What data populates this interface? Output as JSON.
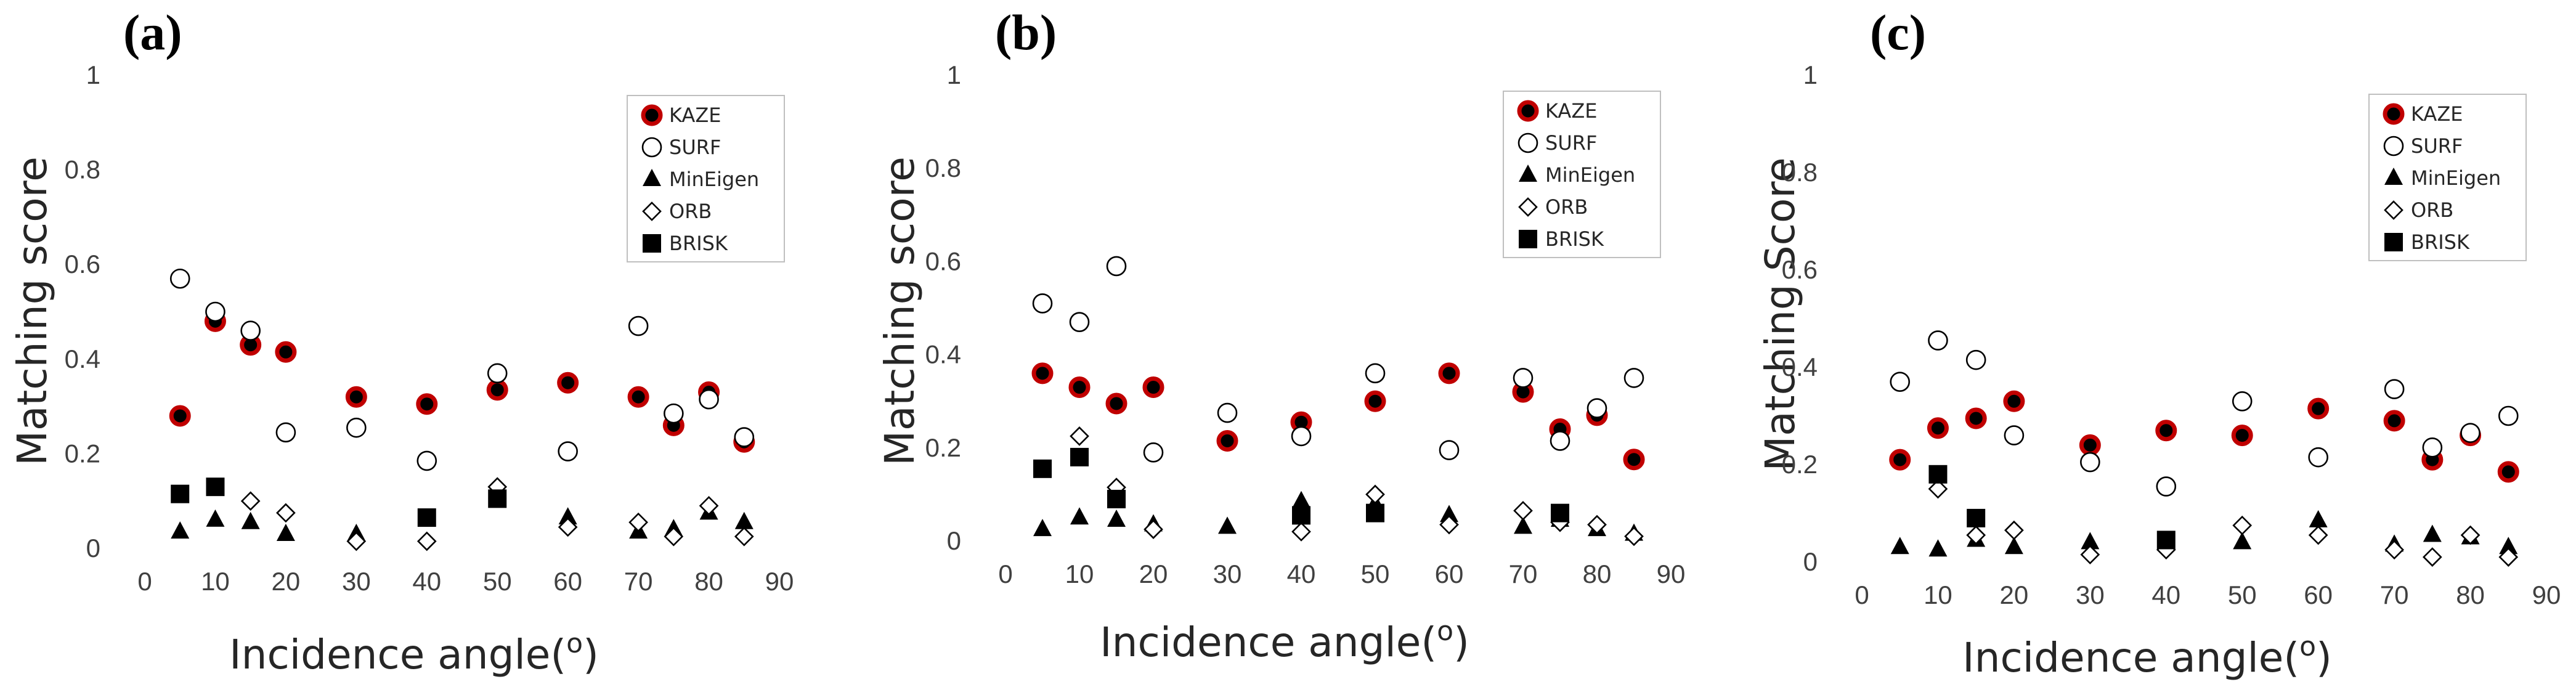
{
  "figure": {
    "marker_colors": {
      "kaze_fill": "#000000",
      "kaze_edge": "#c00000",
      "surf_edge": "#000000",
      "solid": "#000000"
    },
    "legend_order": [
      "KAZE",
      "SURF",
      "MinEigen",
      "ORB",
      "BRISK"
    ]
  },
  "chart_data": [
    {
      "type": "scatter",
      "panel_label": "(a)",
      "title": "",
      "xlabel": "Incidence angle(o)",
      "xlabel_main": "Incidence angle(",
      "xlabel_sup": "o",
      "xlabel_close": ")",
      "ylabel": "Matching score",
      "xlim": [
        0,
        90
      ],
      "ylim": [
        0,
        1
      ],
      "xticks": [
        "0",
        "10",
        "20",
        "30",
        "40",
        "50",
        "60",
        "70",
        "80",
        "90"
      ],
      "yticks": [
        "0",
        "0.2",
        "0.4",
        "0.6",
        "0.8",
        "1"
      ],
      "grid": false,
      "legend_position": "top-right",
      "x": [
        5,
        10,
        15,
        20,
        30,
        40,
        50,
        60,
        70,
        75,
        80,
        85
      ],
      "series": [
        {
          "name": "KAZE",
          "values": [
            0.28,
            0.48,
            0.43,
            0.415,
            0.32,
            0.305,
            0.335,
            0.35,
            0.32,
            0.26,
            0.33,
            0.225
          ]
        },
        {
          "name": "SURF",
          "values": [
            0.57,
            0.5,
            0.46,
            0.245,
            0.255,
            0.185,
            0.37,
            0.205,
            0.47,
            0.285,
            0.315,
            0.235
          ]
        },
        {
          "name": "MinEigen",
          "values": [
            0.035,
            0.06,
            0.055,
            0.03,
            0.03,
            null,
            0.12,
            0.065,
            0.035,
            0.04,
            0.075,
            0.055
          ]
        },
        {
          "name": "ORB",
          "values": [
            null,
            null,
            0.1,
            0.075,
            0.015,
            0.015,
            0.13,
            0.045,
            0.055,
            0.025,
            0.09,
            0.025
          ]
        },
        {
          "name": "BRISK",
          "values": [
            0.115,
            0.13,
            null,
            null,
            null,
            0.065,
            0.105,
            null,
            null,
            null,
            null,
            null
          ]
        }
      ]
    },
    {
      "type": "scatter",
      "panel_label": "(b)",
      "title": "",
      "xlabel": "Incidence angle(o)",
      "xlabel_main": "Incidence angle(",
      "xlabel_sup": "o",
      "xlabel_close": ")",
      "ylabel": "Matching score",
      "xlim": [
        0,
        90
      ],
      "ylim": [
        0,
        1
      ],
      "xticks": [
        "0",
        "10",
        "20",
        "30",
        "40",
        "50",
        "60",
        "70",
        "80",
        "90"
      ],
      "yticks": [
        "0",
        "0.2",
        "0.4",
        "0.6",
        "0.8",
        "1"
      ],
      "grid": false,
      "legend_position": "top-right",
      "x": [
        5,
        10,
        15,
        20,
        30,
        40,
        50,
        60,
        70,
        75,
        80,
        85
      ],
      "series": [
        {
          "name": "KAZE",
          "values": [
            0.36,
            0.33,
            0.295,
            0.33,
            0.215,
            0.255,
            0.3,
            0.36,
            0.32,
            0.24,
            0.27,
            0.175
          ]
        },
        {
          "name": "SURF",
          "values": [
            0.51,
            0.47,
            0.59,
            0.19,
            0.275,
            0.225,
            0.36,
            0.195,
            0.35,
            0.215,
            0.285,
            0.35
          ]
        },
        {
          "name": "MinEigen",
          "values": [
            0.025,
            0.05,
            0.045,
            0.035,
            0.03,
            0.085,
            0.08,
            0.055,
            0.03,
            0.045,
            0.025,
            0.015
          ]
        },
        {
          "name": "ORB",
          "values": [
            null,
            0.225,
            0.115,
            0.025,
            null,
            0.02,
            0.1,
            0.035,
            0.065,
            0.04,
            0.035,
            0.01
          ]
        },
        {
          "name": "BRISK",
          "values": [
            0.155,
            0.18,
            0.09,
            null,
            null,
            0.055,
            0.06,
            null,
            null,
            0.06,
            null,
            null
          ]
        }
      ]
    },
    {
      "type": "scatter",
      "panel_label": "(c)",
      "title": "",
      "xlabel": "Incidence angle(o)",
      "xlabel_main": "Incidence angle(",
      "xlabel_sup": "o",
      "xlabel_close": ")",
      "ylabel": "Matching Score",
      "xlim": [
        0,
        90
      ],
      "ylim": [
        0,
        1
      ],
      "xticks": [
        "0",
        "10",
        "20",
        "30",
        "40",
        "50",
        "60",
        "70",
        "80",
        "90"
      ],
      "yticks": [
        "0",
        "0.2",
        "0.4",
        "0.6",
        "0.8",
        "1"
      ],
      "grid": false,
      "legend_position": "top-right",
      "x": [
        5,
        10,
        15,
        20,
        30,
        40,
        50,
        60,
        70,
        75,
        80,
        85
      ],
      "series": [
        {
          "name": "KAZE",
          "values": [
            0.21,
            0.275,
            0.295,
            0.33,
            0.24,
            0.27,
            0.26,
            0.315,
            0.29,
            0.21,
            0.26,
            0.185
          ]
        },
        {
          "name": "SURF",
          "values": [
            0.37,
            0.455,
            0.415,
            0.26,
            0.205,
            0.155,
            0.33,
            0.215,
            0.355,
            0.235,
            0.265,
            0.3
          ]
        },
        {
          "name": "MinEigen",
          "values": [
            0.03,
            0.025,
            0.045,
            0.03,
            0.04,
            null,
            0.04,
            0.085,
            0.035,
            0.055,
            0.05,
            0.03
          ]
        },
        {
          "name": "ORB",
          "values": [
            null,
            0.15,
            0.055,
            0.065,
            0.015,
            0.025,
            0.075,
            0.055,
            0.025,
            0.01,
            0.055,
            0.01
          ]
        },
        {
          "name": "BRISK",
          "values": [
            null,
            0.18,
            0.09,
            null,
            null,
            0.045,
            null,
            null,
            null,
            null,
            null,
            null
          ]
        }
      ]
    }
  ]
}
